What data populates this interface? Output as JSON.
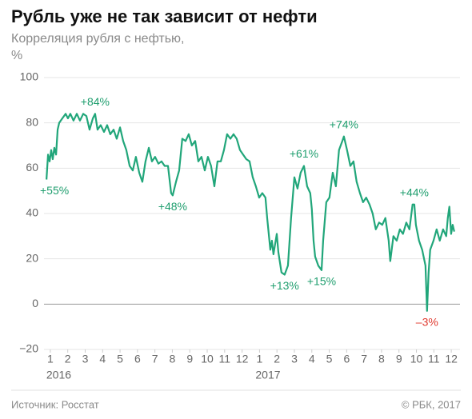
{
  "chart_data": {
    "type": "line",
    "title": "Рубль уже не так зависит от нефти",
    "subtitle": "Корреляция рубля с нефтью,",
    "unit": "%",
    "source": "Источник: Росстат",
    "copyright": "© РБК, 2017",
    "xlim": [
      0,
      24
    ],
    "xticks": [
      {
        "value": 0.5,
        "label": "1"
      },
      {
        "value": 1.5,
        "label": "2"
      },
      {
        "value": 2.5,
        "label": "3"
      },
      {
        "value": 3.5,
        "label": "4"
      },
      {
        "value": 4.5,
        "label": "5"
      },
      {
        "value": 5.5,
        "label": "6"
      },
      {
        "value": 6.5,
        "label": "7"
      },
      {
        "value": 7.5,
        "label": "8"
      },
      {
        "value": 8.5,
        "label": "9"
      },
      {
        "value": 9.5,
        "label": "10"
      },
      {
        "value": 10.5,
        "label": "11"
      },
      {
        "value": 11.5,
        "label": "12"
      },
      {
        "value": 12.5,
        "label": "1"
      },
      {
        "value": 13.5,
        "label": "2"
      },
      {
        "value": 14.5,
        "label": "3"
      },
      {
        "value": 15.5,
        "label": "4"
      },
      {
        "value": 16.5,
        "label": "5"
      },
      {
        "value": 17.5,
        "label": "6"
      },
      {
        "value": 18.5,
        "label": "7"
      },
      {
        "value": 19.5,
        "label": "8"
      },
      {
        "value": 20.5,
        "label": "9"
      },
      {
        "value": 21.5,
        "label": "10"
      },
      {
        "value": 22.5,
        "label": "11"
      },
      {
        "value": 23.5,
        "label": "12"
      }
    ],
    "x_groups": [
      {
        "value": 0.5,
        "label": "2016"
      },
      {
        "value": 12.5,
        "label": "2017"
      }
    ],
    "ylim": [
      -20,
      100
    ],
    "yticks": [
      {
        "value": -20,
        "label": "−20"
      },
      0,
      20,
      40,
      60,
      80,
      100
    ],
    "grid": true,
    "x": [
      0.28,
      0.37,
      0.46,
      0.55,
      0.64,
      0.73,
      0.83,
      0.92,
      1.01,
      1.19,
      1.38,
      1.51,
      1.65,
      1.83,
      2.02,
      2.2,
      2.39,
      2.57,
      2.75,
      2.94,
      3.07,
      3.21,
      3.39,
      3.58,
      3.76,
      3.94,
      4.13,
      4.31,
      4.5,
      4.68,
      4.86,
      5.05,
      5.23,
      5.41,
      5.6,
      5.78,
      5.96,
      6.15,
      6.33,
      6.51,
      6.7,
      6.88,
      7.06,
      7.25,
      7.43,
      7.52,
      7.71,
      7.89,
      8.07,
      8.26,
      8.44,
      8.62,
      8.81,
      8.99,
      9.17,
      9.36,
      9.54,
      9.72,
      9.91,
      10.09,
      10.28,
      10.46,
      10.64,
      10.83,
      11.01,
      11.19,
      11.38,
      11.56,
      11.74,
      11.93,
      12.11,
      12.29,
      12.48,
      12.66,
      12.84,
      12.94,
      13.12,
      13.21,
      13.3,
      13.49,
      13.58,
      13.76,
      13.94,
      14.13,
      14.31,
      14.5,
      14.68,
      14.86,
      15.05,
      15.23,
      15.41,
      15.5,
      15.6,
      15.69,
      15.87,
      16.06,
      16.15,
      16.33,
      16.51,
      16.7,
      16.88,
      17.06,
      17.25,
      17.34,
      17.52,
      17.71,
      17.89,
      18.07,
      18.26,
      18.44,
      18.62,
      18.81,
      18.99,
      19.17,
      19.36,
      19.54,
      19.72,
      19.91,
      20.0,
      20.18,
      20.37,
      20.55,
      20.73,
      20.92,
      21.1,
      21.28,
      21.38,
      21.47,
      21.65,
      21.83,
      22.02,
      22.11,
      22.2,
      22.29,
      22.48,
      22.66,
      22.84,
      23.03,
      23.21,
      23.3,
      23.39,
      23.49,
      23.58,
      23.67
    ],
    "values": [
      55,
      66,
      63,
      68,
      64,
      69,
      66,
      77,
      80,
      82,
      84,
      82,
      84,
      81,
      84,
      81,
      84,
      83,
      77,
      82,
      84,
      77,
      79,
      76,
      79,
      75,
      77,
      73,
      78,
      72,
      68,
      61,
      59,
      65,
      58,
      54,
      63,
      69,
      63,
      65,
      62,
      63,
      61,
      61,
      49,
      48,
      54,
      59,
      73,
      72,
      75,
      70,
      72,
      63,
      65,
      59,
      65,
      61,
      52,
      63,
      63,
      68,
      75,
      73,
      75,
      73,
      68,
      66,
      64,
      63,
      56,
      52,
      47,
      49,
      47,
      38,
      24,
      28,
      22,
      31,
      23,
      14,
      13,
      17,
      38,
      56,
      51,
      58,
      61,
      52,
      49,
      42,
      28,
      21,
      17,
      15,
      28,
      45,
      47,
      58,
      52,
      68,
      72,
      74,
      68,
      61,
      63,
      54,
      49,
      45,
      47,
      44,
      40,
      33,
      36,
      35,
      38,
      28,
      19,
      30,
      28,
      33,
      31,
      36,
      33,
      44,
      44,
      35,
      28,
      24,
      17,
      -3,
      14,
      24,
      28,
      33,
      28,
      33,
      30,
      38,
      43,
      31,
      35,
      32
    ],
    "color": "#21a67a",
    "annotations": [
      {
        "label": "+55%",
        "x": 0.28,
        "y": 55,
        "color": "#1f9e6e"
      },
      {
        "label": "+84%",
        "x": 3.07,
        "y": 84,
        "color": "#1f9e6e"
      },
      {
        "label": "+48%",
        "x": 7.52,
        "y": 48,
        "color": "#1f9e6e"
      },
      {
        "label": "+13%",
        "x": 13.94,
        "y": 13,
        "color": "#1f9e6e"
      },
      {
        "label": "+61%",
        "x": 15.05,
        "y": 61,
        "color": "#1f9e6e"
      },
      {
        "label": "+15%",
        "x": 16.06,
        "y": 15,
        "color": "#1f9e6e"
      },
      {
        "label": "+74%",
        "x": 17.34,
        "y": 74,
        "color": "#1f9e6e"
      },
      {
        "label": "+44%",
        "x": 21.38,
        "y": 44,
        "color": "#1f9e6e"
      },
      {
        "label": "–3%",
        "x": 22.11,
        "y": -3,
        "color": "#e03a2f"
      }
    ]
  }
}
